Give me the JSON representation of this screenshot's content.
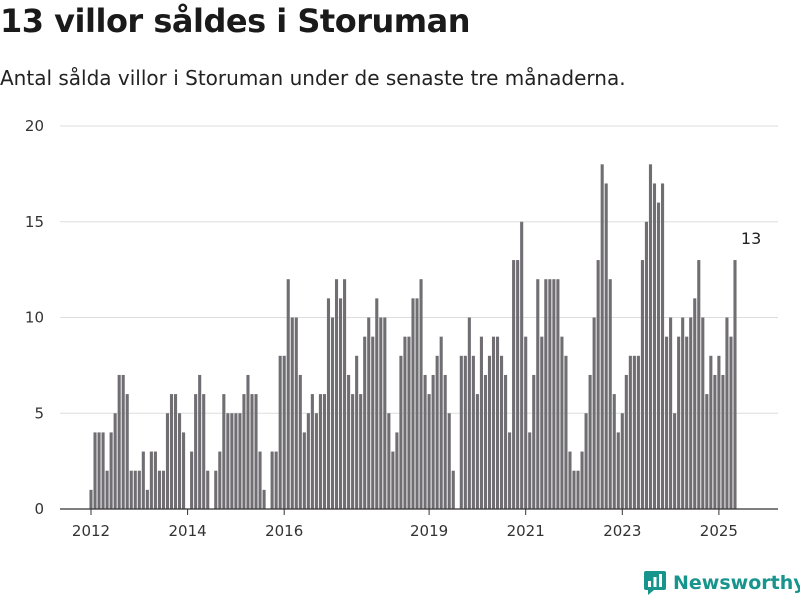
{
  "title": "13 villor såldes i Storuman",
  "subtitle": "Antal sålda villor i Storuman under de senaste tre månaderna.",
  "brand": {
    "name": "Newsworthy",
    "logo_icon": "bar-chart-icon",
    "color": "#17958c"
  },
  "colors": {
    "bar": "#706e73",
    "highlight": "#17958c",
    "grid": "#dddddd",
    "axis": "#333333"
  },
  "chart_data": {
    "type": "bar",
    "ylim": [
      0,
      20
    ],
    "yticks": [
      0,
      5,
      10,
      15,
      20
    ],
    "grid": true,
    "start_month": "2012-01",
    "xticks": [
      {
        "label": "2012",
        "month": "2012-01"
      },
      {
        "label": "2014",
        "month": "2014-01"
      },
      {
        "label": "2016",
        "month": "2016-01"
      },
      {
        "label": "2019",
        "month": "2019-01"
      },
      {
        "label": "2021",
        "month": "2021-01"
      },
      {
        "label": "2023",
        "month": "2023-01"
      },
      {
        "label": "2025",
        "month": "2025-01"
      }
    ],
    "values": [
      1,
      4,
      4,
      4,
      2,
      4,
      5,
      7,
      7,
      6,
      2,
      2,
      2,
      3,
      1,
      3,
      3,
      2,
      2,
      5,
      6,
      6,
      5,
      4,
      0,
      3,
      6,
      7,
      6,
      2,
      0,
      2,
      3,
      6,
      5,
      5,
      5,
      5,
      6,
      7,
      6,
      6,
      3,
      1,
      0,
      3,
      3,
      8,
      8,
      12,
      10,
      10,
      7,
      4,
      5,
      6,
      5,
      6,
      6,
      11,
      10,
      12,
      11,
      12,
      7,
      6,
      8,
      6,
      9,
      10,
      9,
      11,
      10,
      10,
      5,
      3,
      4,
      8,
      9,
      9,
      11,
      11,
      12,
      7,
      6,
      7,
      8,
      9,
      7,
      5,
      2,
      0,
      8,
      8,
      10,
      8,
      6,
      9,
      7,
      8,
      9,
      9,
      8,
      7,
      4,
      13,
      13,
      15,
      9,
      4,
      7,
      12,
      9,
      12,
      12,
      12,
      12,
      9,
      8,
      3,
      2,
      2,
      3,
      5,
      7,
      10,
      13,
      18,
      17,
      12,
      6,
      4,
      5,
      7,
      8,
      8,
      8,
      13,
      15,
      18,
      17,
      16,
      17,
      9,
      10,
      5,
      9,
      10,
      9,
      10,
      11,
      13,
      10,
      6,
      8,
      7,
      8,
      7,
      10,
      9,
      13
    ],
    "highlight": {
      "index": 164,
      "value": 13,
      "label": "13"
    }
  }
}
